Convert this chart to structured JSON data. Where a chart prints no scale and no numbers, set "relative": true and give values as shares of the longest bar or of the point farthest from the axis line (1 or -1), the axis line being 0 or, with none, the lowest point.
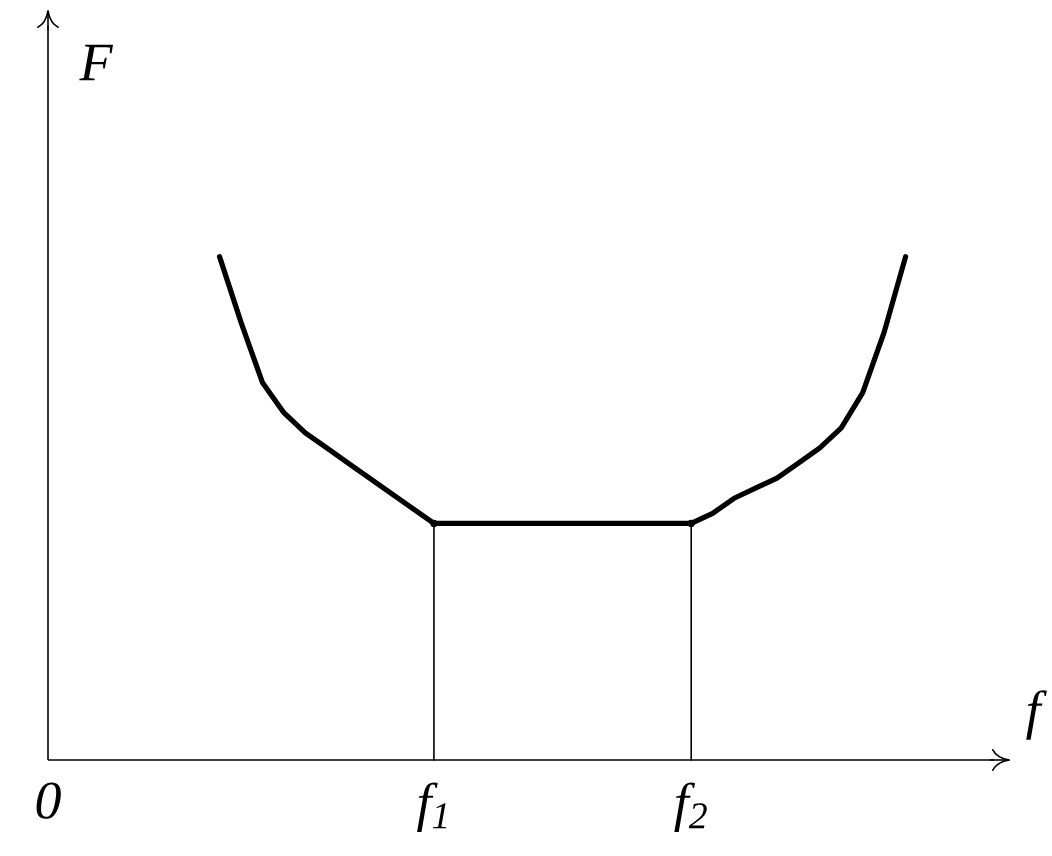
{
  "chart_data": {
    "type": "line",
    "relative": true,
    "xlabel": "f",
    "ylabel": "F",
    "marker": "none",
    "tick_labels": "x",
    "categories": [
      "0",
      null,
      null,
      null,
      null,
      null,
      null,
      null,
      null,
      null,
      null,
      null,
      null,
      null,
      null,
      null,
      null,
      null,
      "f$_{1}$",
      null,
      null,
      null,
      null,
      null,
      null,
      null,
      null,
      null,
      null,
      null,
      "f$_{2}$",
      null,
      null,
      null,
      null,
      null,
      null,
      null,
      null,
      null,
      null,
      null,
      null,
      null,
      null
    ],
    "series": [
      {
        "color": "#000000",
        "values": [
          null,
          null,
          null,
          null,
          null,
          null,
          null,
          null,
          1,
          0.87,
          0.75,
          0.69,
          0.65,
          0.62,
          0.59,
          0.56,
          0.53,
          0.5,
          0.47,
          0.47,
          0.47,
          0.47,
          0.47,
          0.47,
          0.47,
          0.47,
          0.47,
          0.47,
          0.47,
          0.47,
          0.47,
          0.49,
          0.52,
          0.54,
          0.56,
          0.59,
          0.62,
          0.66,
          0.73,
          0.85,
          1,
          null,
          null,
          null,
          null
        ]
      },
      {
        "type": "lollipop",
        "marker": "circle",
        "color": "#000000",
        "values": [
          null,
          null,
          null,
          null,
          null,
          null,
          null,
          null,
          null,
          null,
          null,
          null,
          null,
          null,
          null,
          null,
          null,
          null,
          0.47,
          null,
          null,
          null,
          null,
          null,
          null,
          null,
          null,
          null,
          null,
          null,
          0.47,
          null,
          null,
          null,
          null,
          null,
          null,
          null,
          null,
          null,
          null,
          null,
          null,
          null,
          null
        ]
      }
    ]
  }
}
